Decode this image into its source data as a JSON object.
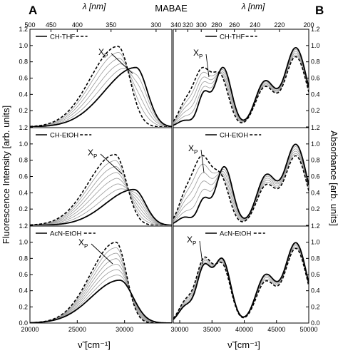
{
  "figure": {
    "title": "MABAE",
    "panel_labels": [
      "A",
      "B"
    ],
    "top_axis_label": "λ [nm]",
    "bottom_axis_label": "ν̃ [cm⁻¹]",
    "left_axis_label": "Fluorescence Intensity [arb. units]",
    "right_axis_label": "Absorbance [arb. units]",
    "series_marker": "X",
    "series_marker_sub": "P"
  },
  "chart_data": [
    {
      "type": "line",
      "panel": "A",
      "x_unit": "cm-1",
      "xlim": [
        20000,
        35000
      ],
      "x_ticks": [
        20000,
        25000,
        30000
      ],
      "top_wavelength_ticks_nm": [
        500,
        450,
        400,
        350,
        300
      ],
      "ylim": [
        0,
        1.2
      ],
      "y_ticks": [
        0.0,
        0.2,
        0.4,
        0.6,
        0.8,
        1.0,
        1.2
      ],
      "rows": [
        {
          "legend": [
            "CH",
            "-",
            "THF"
          ],
          "solid": {
            "center": 31200,
            "sigma_lo": 3300,
            "sigma_hi": 1200,
            "amp": 0.73
          },
          "dashed": {
            "center": 29300,
            "sigma_lo": 2900,
            "sigma_hi": 1250,
            "amp": 0.99
          },
          "grey_count": 4
        },
        {
          "legend": [
            "CH",
            "-",
            "EtOH"
          ],
          "solid": {
            "center": 31000,
            "sigma_lo": 3000,
            "sigma_hi": 1200,
            "amp": 0.44
          },
          "dashed": {
            "center": 29000,
            "sigma_lo": 2800,
            "sigma_hi": 1200,
            "amp": 0.87
          },
          "grey_count": 6
        },
        {
          "legend": [
            "AcN",
            "-",
            "EtOH"
          ],
          "solid": {
            "center": 29500,
            "sigma_lo": 3000,
            "sigma_hi": 1400,
            "amp": 0.53
          },
          "dashed": {
            "center": 29100,
            "sigma_lo": 2700,
            "sigma_hi": 1100,
            "amp": 1.0
          },
          "grey_count": 6
        }
      ]
    },
    {
      "type": "line",
      "panel": "B",
      "x_unit": "cm-1",
      "xlim": [
        29000,
        50000
      ],
      "x_ticks": [
        30000,
        35000,
        40000,
        45000,
        50000
      ],
      "top_wavelength_ticks_nm": [
        340,
        320,
        300,
        280,
        260,
        240,
        220,
        200
      ],
      "ylim": [
        0,
        1.2
      ],
      "y_ticks": [
        0.0,
        0.2,
        0.4,
        0.6,
        0.8,
        1.0,
        1.2
      ],
      "rows": [
        {
          "legend": [
            "CH",
            "-",
            "THF"
          ],
          "solid": [
            {
              "center": 30800,
              "sigma": 1100,
              "amp": 0.08
            },
            {
              "center": 33700,
              "sigma": 900,
              "amp": 0.38
            },
            {
              "center": 36700,
              "sigma": 1300,
              "amp": 0.73
            },
            {
              "center": 43200,
              "sigma": 1500,
              "amp": 0.55
            },
            {
              "center": 48000,
              "sigma": 1700,
              "amp": 0.97
            }
          ],
          "dashed": [
            {
              "center": 30800,
              "sigma": 1100,
              "amp": 0.25
            },
            {
              "center": 33400,
              "sigma": 1300,
              "amp": 0.66
            },
            {
              "center": 36300,
              "sigma": 1300,
              "amp": 0.6
            },
            {
              "center": 43200,
              "sigma": 1500,
              "amp": 0.48
            },
            {
              "center": 48000,
              "sigma": 1700,
              "amp": 0.86
            }
          ],
          "grey_count": 4
        },
        {
          "legend": [
            "CH",
            "-",
            "EtOH"
          ],
          "solid": [
            {
              "center": 30800,
              "sigma": 1100,
              "amp": 0.1
            },
            {
              "center": 33700,
              "sigma": 900,
              "amp": 0.3
            },
            {
              "center": 36900,
              "sigma": 1300,
              "amp": 0.72
            },
            {
              "center": 43400,
              "sigma": 1500,
              "amp": 0.6
            },
            {
              "center": 48000,
              "sigma": 1700,
              "amp": 0.99
            }
          ],
          "dashed": [
            {
              "center": 30800,
              "sigma": 1100,
              "amp": 0.3
            },
            {
              "center": 33400,
              "sigma": 1400,
              "amp": 0.8
            },
            {
              "center": 36400,
              "sigma": 1300,
              "amp": 0.55
            },
            {
              "center": 43400,
              "sigma": 1500,
              "amp": 0.48
            },
            {
              "center": 48000,
              "sigma": 1700,
              "amp": 0.85
            }
          ],
          "grey_count": 4
        },
        {
          "legend": [
            "AcN",
            "-",
            "EtOH"
          ],
          "solid": [
            {
              "center": 30900,
              "sigma": 1100,
              "amp": 0.2
            },
            {
              "center": 33700,
              "sigma": 1100,
              "amp": 0.65
            },
            {
              "center": 36600,
              "sigma": 1300,
              "amp": 0.78
            },
            {
              "center": 43300,
              "sigma": 1500,
              "amp": 0.58
            },
            {
              "center": 48000,
              "sigma": 1700,
              "amp": 0.99
            }
          ],
          "dashed": [
            {
              "center": 30900,
              "sigma": 1100,
              "amp": 0.25
            },
            {
              "center": 33700,
              "sigma": 1200,
              "amp": 0.74
            },
            {
              "center": 36600,
              "sigma": 1300,
              "amp": 0.7
            },
            {
              "center": 43300,
              "sigma": 1500,
              "amp": 0.5
            },
            {
              "center": 48000,
              "sigma": 1700,
              "amp": 0.92
            }
          ],
          "grey_count": 3
        }
      ]
    }
  ]
}
